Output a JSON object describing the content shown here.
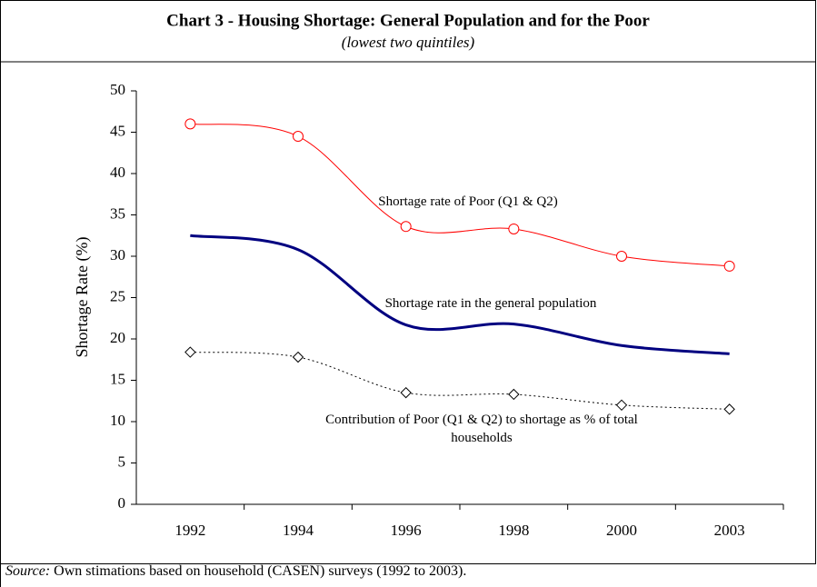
{
  "chart_data": {
    "type": "line",
    "title": "Chart 3 - Housing Shortage: General Population and for the Poor",
    "subtitle": "(lowest two quintiles)",
    "y_label": "Shortage Rate (%)",
    "categories": [
      "1992",
      "1994",
      "1996",
      "1998",
      "2000",
      "2003"
    ],
    "series": [
      {
        "name": "Shortage rate of Poor (Q1 & Q2)",
        "color": "#ff0000",
        "marker": "circle",
        "line_style": "solid",
        "values": [
          46,
          44.5,
          33.6,
          33.3,
          30,
          28.8
        ]
      },
      {
        "name": "Shortage rate in the general population",
        "color": "#000080",
        "marker": "none",
        "line_style": "thick",
        "values": [
          32.5,
          30.8,
          21.7,
          21.8,
          19.2,
          18.2
        ]
      },
      {
        "name": "Contribution of Poor (Q1 & Q2) to shortage as % of total households",
        "color": "#000000",
        "marker": "diamond",
        "line_style": "dotted",
        "values": [
          18.4,
          17.8,
          13.5,
          13.3,
          12,
          11.5
        ]
      }
    ],
    "ylim": [
      0,
      50
    ],
    "yticks": [
      0,
      5,
      10,
      15,
      20,
      25,
      30,
      35,
      40,
      45,
      50
    ],
    "legend": "inline",
    "source": {
      "label": "Source:",
      "text": "Own stimations based on household (CASEN) surveys (1992 to 2003)."
    }
  }
}
